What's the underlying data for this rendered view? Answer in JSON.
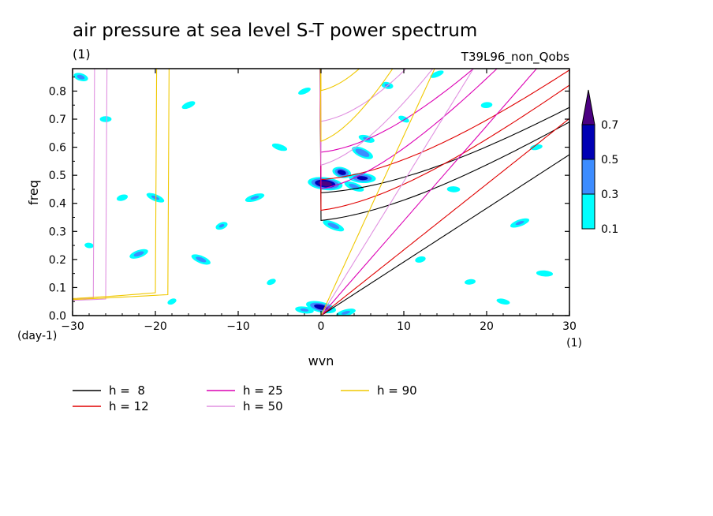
{
  "chart_data": {
    "type": "heatmap",
    "title": "air pressure at sea level S-T power spectrum",
    "subtitle_left": "(1)",
    "subtitle_right": "T39L96_non_Qobs",
    "xlabel": "wvn",
    "x_unit": "(1)",
    "ylabel": "freq",
    "y_unit": "(day-1)",
    "xlim": [
      -30,
      30
    ],
    "ylim": [
      0,
      0.88
    ],
    "xticks": [
      -30,
      -20,
      -10,
      0,
      10,
      20,
      30
    ],
    "yticks": [
      0.0,
      0.1,
      0.2,
      0.3,
      0.4,
      0.5,
      0.6,
      0.7,
      0.8
    ],
    "colorbar": {
      "levels": [
        "0.1",
        "0.3",
        "0.5",
        "0.7"
      ],
      "colors": [
        "#00ffff",
        "#3c8cff",
        "#0000b4",
        "#4b0082"
      ],
      "extend": "max"
    },
    "curves": [
      {
        "label": "h =  8",
        "h": 8,
        "color": "#000000"
      },
      {
        "label": "h = 12",
        "h": 12,
        "color": "#e00000"
      },
      {
        "label": "h = 25",
        "h": 25,
        "color": "#dc00b4"
      },
      {
        "label": "h = 50",
        "h": 50,
        "color": "#e090e0"
      },
      {
        "label": "h = 90",
        "h": 90,
        "color": "#f0c800"
      }
    ],
    "blobs": [
      {
        "x": 0.5,
        "y": 0.47,
        "v": 0.7
      },
      {
        "x": 2.5,
        "y": 0.51,
        "v": 0.55
      },
      {
        "x": 5,
        "y": 0.49,
        "v": 0.5
      },
      {
        "x": 5,
        "y": 0.58,
        "v": 0.45
      },
      {
        "x": 4,
        "y": 0.46,
        "v": 0.35
      },
      {
        "x": 5.5,
        "y": 0.63,
        "v": 0.3
      },
      {
        "x": 1.5,
        "y": 0.32,
        "v": 0.35
      },
      {
        "x": 0,
        "y": 0.03,
        "v": 0.55
      },
      {
        "x": -2,
        "y": 0.02,
        "v": 0.3
      },
      {
        "x": 3,
        "y": 0.01,
        "v": 0.3
      },
      {
        "x": -14.5,
        "y": 0.2,
        "v": 0.35
      },
      {
        "x": -22,
        "y": 0.22,
        "v": 0.35
      },
      {
        "x": -29,
        "y": 0.85,
        "v": 0.35
      },
      {
        "x": -8,
        "y": 0.42,
        "v": 0.3
      },
      {
        "x": -12,
        "y": 0.32,
        "v": 0.3
      },
      {
        "x": -20,
        "y": 0.42,
        "v": 0.3
      },
      {
        "x": -24,
        "y": 0.42,
        "v": 0.25
      },
      {
        "x": 8,
        "y": 0.82,
        "v": 0.3
      },
      {
        "x": 24,
        "y": 0.33,
        "v": 0.3
      },
      {
        "x": 20,
        "y": 0.75,
        "v": 0.25
      },
      {
        "x": -5,
        "y": 0.6,
        "v": 0.25
      },
      {
        "x": 12,
        "y": 0.2,
        "v": 0.25
      },
      {
        "x": 16,
        "y": 0.45,
        "v": 0.25
      },
      {
        "x": 27,
        "y": 0.15,
        "v": 0.25
      },
      {
        "x": -26,
        "y": 0.7,
        "v": 0.25
      },
      {
        "x": -16,
        "y": 0.75,
        "v": 0.25
      },
      {
        "x": -2,
        "y": 0.8,
        "v": 0.22
      },
      {
        "x": 26,
        "y": 0.6,
        "v": 0.22
      },
      {
        "x": -28,
        "y": 0.25,
        "v": 0.22
      },
      {
        "x": -6,
        "y": 0.12,
        "v": 0.22
      },
      {
        "x": 18,
        "y": 0.12,
        "v": 0.22
      },
      {
        "x": 22,
        "y": 0.05,
        "v": 0.22
      },
      {
        "x": -18,
        "y": 0.05,
        "v": 0.22
      },
      {
        "x": 10,
        "y": 0.7,
        "v": 0.22
      },
      {
        "x": 14,
        "y": 0.86,
        "v": 0.22
      }
    ]
  },
  "legend_title": "",
  "icons": []
}
